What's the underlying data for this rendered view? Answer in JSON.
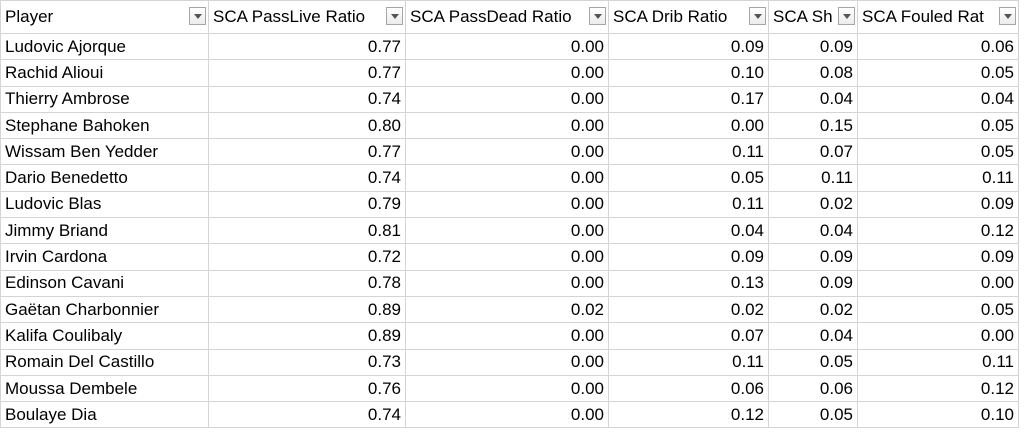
{
  "table": {
    "header": [
      "Player",
      "SCA PassLive Ratio",
      "SCA PassDead Ratio",
      "SCA Drib Ratio",
      "SCA Sh",
      "SCA Fouled Rat"
    ],
    "rows": [
      [
        "Ludovic Ajorque",
        "0.77",
        "0.00",
        "0.09",
        "0.09",
        "0.06"
      ],
      [
        "Rachid Alioui",
        "0.77",
        "0.00",
        "0.10",
        "0.08",
        "0.05"
      ],
      [
        "Thierry Ambrose",
        "0.74",
        "0.00",
        "0.17",
        "0.04",
        "0.04"
      ],
      [
        "Stephane Bahoken",
        "0.80",
        "0.00",
        "0.00",
        "0.15",
        "0.05"
      ],
      [
        "Wissam Ben Yedder",
        "0.77",
        "0.00",
        "0.11",
        "0.07",
        "0.05"
      ],
      [
        "Dario Benedetto",
        "0.74",
        "0.00",
        "0.05",
        "0.11",
        "0.11"
      ],
      [
        "Ludovic Blas",
        "0.79",
        "0.00",
        "0.11",
        "0.02",
        "0.09"
      ],
      [
        "Jimmy Briand",
        "0.81",
        "0.00",
        "0.04",
        "0.04",
        "0.12"
      ],
      [
        "Irvin Cardona",
        "0.72",
        "0.00",
        "0.09",
        "0.09",
        "0.09"
      ],
      [
        "Edinson Cavani",
        "0.78",
        "0.00",
        "0.13",
        "0.09",
        "0.00"
      ],
      [
        "Gaëtan Charbonnier",
        "0.89",
        "0.02",
        "0.02",
        "0.02",
        "0.05"
      ],
      [
        "Kalifa Coulibaly",
        "0.89",
        "0.00",
        "0.07",
        "0.04",
        "0.00"
      ],
      [
        "Romain Del Castillo",
        "0.73",
        "0.00",
        "0.11",
        "0.05",
        "0.11"
      ],
      [
        "Moussa Dembele",
        "0.76",
        "0.00",
        "0.06",
        "0.06",
        "0.12"
      ],
      [
        "Boulaye Dia",
        "0.74",
        "0.00",
        "0.12",
        "0.05",
        "0.10"
      ]
    ]
  }
}
